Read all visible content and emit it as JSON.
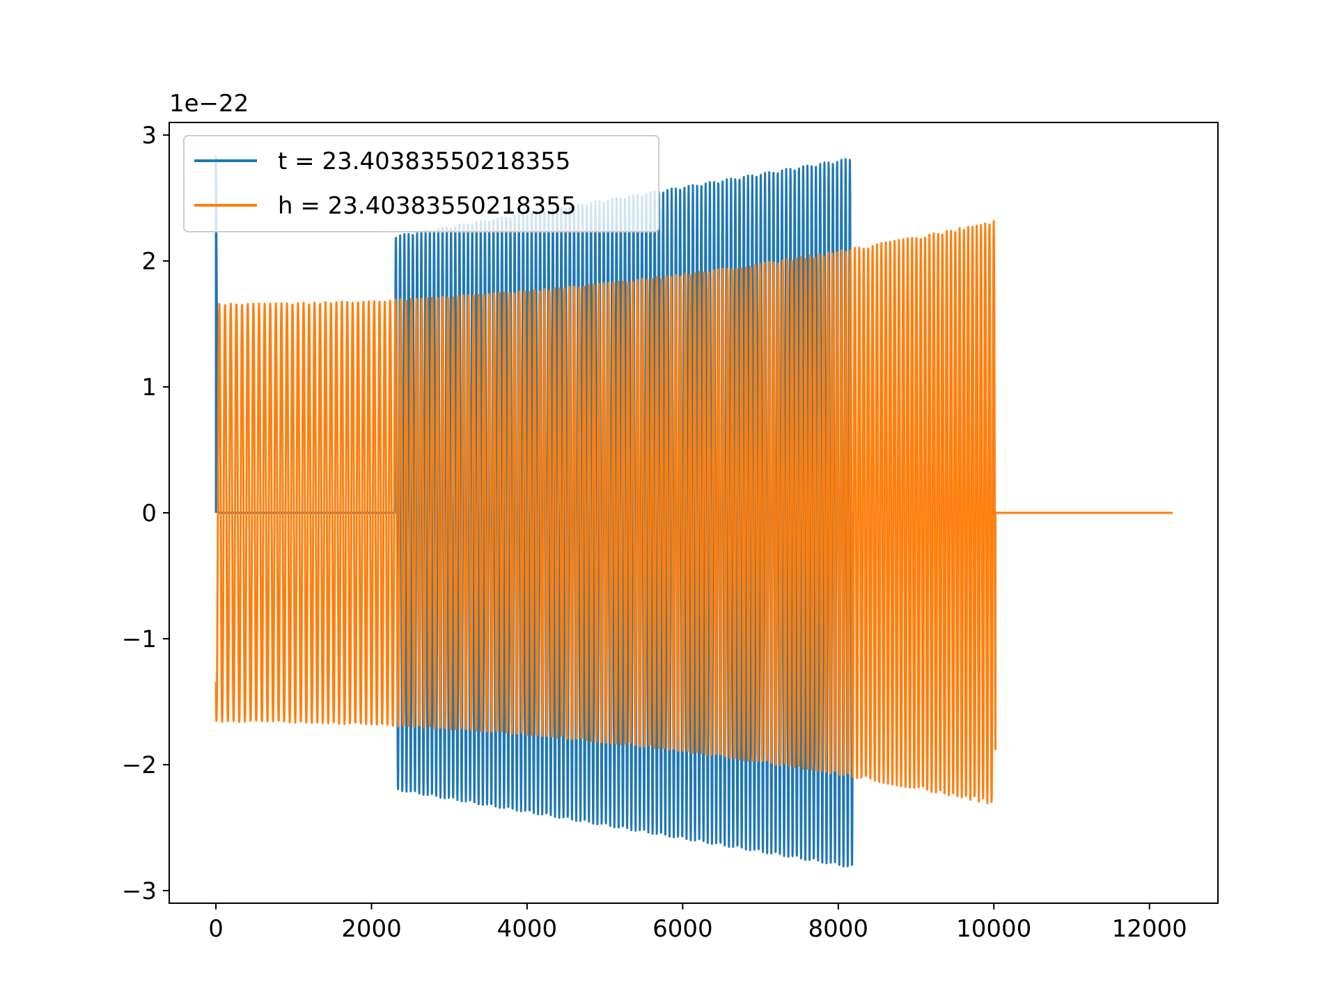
{
  "chart_data": {
    "type": "line",
    "title": "",
    "xlabel": "",
    "ylabel": "",
    "y_offset_label": "1e−22",
    "xlim": [
      -600,
      12880
    ],
    "ylim": [
      -3.1,
      3.1
    ],
    "x_ticks": [
      0,
      2000,
      4000,
      6000,
      8000,
      10000,
      12000
    ],
    "x_tick_labels": [
      "0",
      "2000",
      "4000",
      "6000",
      "8000",
      "10000",
      "12000"
    ],
    "y_ticks": [
      3,
      2,
      1,
      0,
      -1,
      -2,
      -3
    ],
    "y_tick_labels": [
      "3",
      "2",
      "1",
      "0",
      "−1",
      "−2",
      "−3"
    ],
    "grid": false,
    "legend_position": "upper-left",
    "series": [
      {
        "name": "t = 23.40383550218355",
        "color": "#1f77b4",
        "shape": "gw-segments-with-zero-gap",
        "spike_at_x0": 2.83,
        "zero_from": 30,
        "zero_to": 2300,
        "osc_from": 2300,
        "osc_to": 8190,
        "amp_start": 2.2,
        "amp_end": 2.82,
        "cycles": 108
      },
      {
        "name": "h = 23.40383550218355",
        "color": "#ff7f0e",
        "shape": "gw-chirp",
        "osc_from": 0,
        "osc_to": 10020,
        "amp_start": 1.66,
        "amp_end": 2.32,
        "cycles": 160,
        "zero_from": 10020,
        "zero_to": 12300
      }
    ]
  }
}
